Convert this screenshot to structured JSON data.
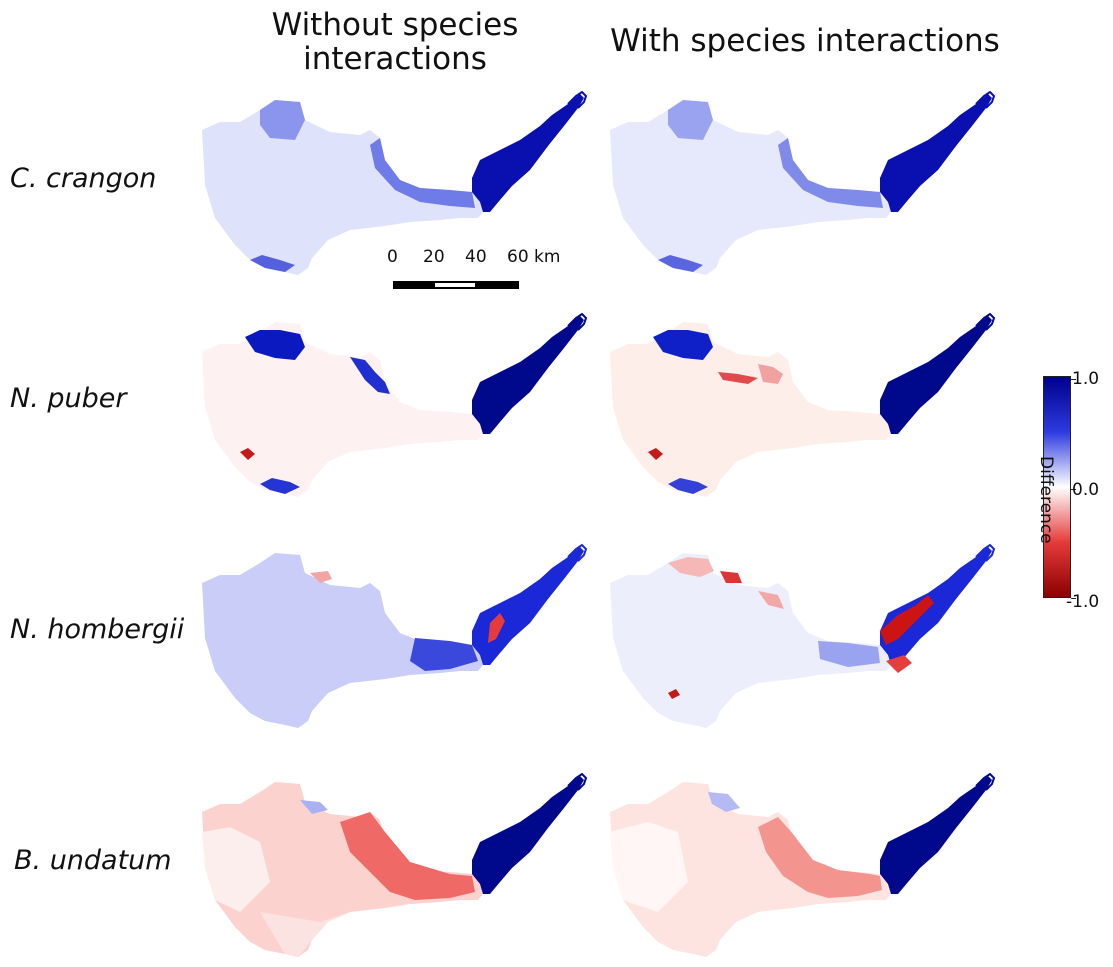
{
  "columns": {
    "left_title_line1": "Without species",
    "left_title_line2": "interactions",
    "right_title": "With species interactions"
  },
  "rows": [
    {
      "label": "C. crangon"
    },
    {
      "label": "N. puber"
    },
    {
      "label": "N. hombergii"
    },
    {
      "label": "B. undatum"
    }
  ],
  "scalebar": {
    "labels": [
      "0",
      "20",
      "40",
      "60 km"
    ]
  },
  "colorbar": {
    "label": "Difference",
    "max_label": "1.0",
    "mid_label": "0.0",
    "min_label": "-1.0",
    "colors": {
      "max": "#00008b",
      "mid": "#ffffff",
      "min": "#8b0000"
    }
  },
  "panels": [
    {
      "row": "C. crangon",
      "column": "Without species interactions",
      "body_color": "#dfe2fb",
      "estuary_color": "#0a10b0"
    },
    {
      "row": "C. crangon",
      "column": "With species interactions",
      "body_color": "#e6e8fb",
      "estuary_color": "#0a10b0"
    },
    {
      "row": "N. puber",
      "column": "Without species interactions",
      "body_color": "#fdf2f1",
      "estuary_color": "#00088c"
    },
    {
      "row": "N. puber",
      "column": "With species interactions",
      "body_color": "#fdeeea",
      "estuary_color": "#00088c"
    },
    {
      "row": "N. hombergii",
      "column": "Without species interactions",
      "body_color": "#c9cdf8",
      "estuary_color": "#1b28d8"
    },
    {
      "row": "N. hombergii",
      "column": "With species interactions",
      "body_color": "#eceefc",
      "estuary_color": "#1b28d8"
    },
    {
      "row": "B. undatum",
      "column": "Without species interactions",
      "body_color": "#fcd2cf",
      "estuary_color": "#00088c"
    },
    {
      "row": "B. undatum",
      "column": "With species interactions",
      "body_color": "#fde4e1",
      "estuary_color": "#00088c"
    }
  ]
}
